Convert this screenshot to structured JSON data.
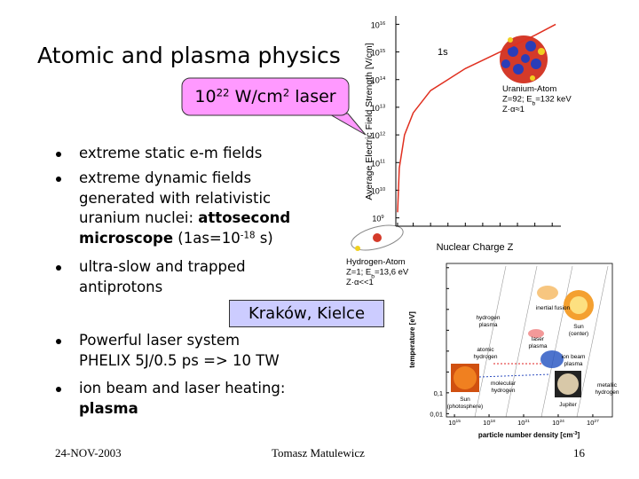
{
  "slide": {
    "title": "Atomic and plasma physics",
    "callout": [
      {
        "text": "10"
      },
      {
        "text": "22",
        "sup": true
      },
      {
        "text": " W/cm"
      },
      {
        "text": "2",
        "sup": true
      },
      {
        "text": " laser"
      }
    ],
    "bullets": [
      [
        [
          {
            "text": "extreme static e-m fields"
          }
        ]
      ],
      [
        [
          {
            "text": "extreme dynamic fields"
          }
        ],
        [
          {
            "text": "generated with relativistic"
          }
        ],
        [
          {
            "text": "uranium nuclei: "
          },
          {
            "text": "attosecond",
            "bold": true
          }
        ],
        [
          {
            "text": "microscope",
            "bold": true
          },
          {
            "text": " (1as=10"
          },
          {
            "text": "-18",
            "sup": true
          },
          {
            "text": " s)"
          }
        ]
      ],
      [
        [
          {
            "text": "ultra-slow and trapped"
          }
        ],
        [
          {
            "text": "antiprotons"
          }
        ]
      ],
      [
        [
          {
            "text": "Powerful laser system"
          }
        ],
        [
          {
            "text": "PHELIX 5J/0.5 ps => 10 TW"
          }
        ]
      ],
      [
        [
          {
            "text": "ion beam and laser heating:"
          }
        ],
        [
          {
            "text": "plasma",
            "bold": true
          }
        ]
      ]
    ],
    "box": "Kraków, Kielce",
    "footer": {
      "date": "24-NOV-2003",
      "author": "Tomasz Matulewicz",
      "page": "16"
    }
  },
  "chart_data": [
    {
      "type": "line",
      "xlabel": "Nuclear Charge Z",
      "ylabel": "Average Electric Field Strength [V/cm]",
      "log_y": true,
      "color": "#e03020",
      "annotation": "1s",
      "x": [
        1,
        2,
        5,
        10,
        20,
        30,
        40,
        50,
        60,
        70,
        80,
        92
      ],
      "values": [
        1600000000.0,
        63000000000.0,
        1000000000000.0,
        6300000000000.0,
        40000000000000.0,
        100000000000000.0,
        250000000000000.0,
        500000000000000.0,
        1000000000000000.0,
        2000000000000000.0,
        4000000000000000.0,
        1e+16
      ],
      "xlim": [
        0,
        95
      ],
      "ylim": [
        500000000.0,
        2e+16
      ],
      "xticks": [
        1,
        10,
        20,
        30,
        40,
        50,
        60,
        70,
        80,
        90
      ],
      "yticks": [
        {
          "value": 1000000000.0,
          "label": "10",
          "sup": "9"
        },
        {
          "value": 10000000000.0,
          "label": "10",
          "sup": "10"
        },
        {
          "value": 100000000000.0,
          "label": "10",
          "sup": "11"
        },
        {
          "value": 1000000000000.0,
          "label": "10",
          "sup": "12"
        },
        {
          "value": 10000000000000.0,
          "label": "10",
          "sup": "13"
        },
        {
          "value": 100000000000000.0,
          "label": "10",
          "sup": "14"
        },
        {
          "value": 1000000000000000.0,
          "label": "10",
          "sup": "15"
        },
        {
          "value": 1e+16,
          "label": "10",
          "sup": "16"
        }
      ],
      "atoms": [
        [
          [
            {
              "text": "Uranium-Atom"
            }
          ],
          [
            {
              "text": "Z=92; E"
            },
            {
              "text": "b",
              "sub": true
            },
            {
              "text": "=132 keV"
            }
          ],
          [
            {
              "text": "Z·α≈1"
            }
          ]
        ],
        [
          [
            {
              "text": "Hydrogen-Atom"
            }
          ],
          [
            {
              "text": "Z=1; E"
            },
            {
              "text": "b",
              "sub": true
            },
            {
              "text": "=13,6 eV"
            }
          ],
          [
            {
              "text": "Z·α<<1"
            }
          ]
        ]
      ]
    },
    {
      "type": "region",
      "xlabel": [
        {
          "text": "particle number density [cm"
        },
        {
          "text": "-3",
          "sup": true
        },
        {
          "text": "]"
        }
      ],
      "ylabel": "temperature [eV]",
      "log_x": true,
      "log_y": true,
      "xlim": [
        200000000000000.0,
        5e+28
      ],
      "ylim": [
        0.007,
        160000
      ],
      "xticks": [
        {
          "value": 1000000000000000.0,
          "label": "10",
          "sup": "15"
        },
        {
          "value": 1e+18,
          "label": "10",
          "sup": "18"
        },
        {
          "value": 1e+21,
          "label": "10",
          "sup": "21"
        },
        {
          "value": 1e+24,
          "label": "10",
          "sup": "24"
        },
        {
          "value": 1e+27,
          "label": "10",
          "sup": "27"
        }
      ],
      "yticks": [
        100000,
        10000,
        1000,
        100,
        10,
        1,
        {
          "value": 0.1,
          "label": "0,1"
        },
        {
          "value": 0.01,
          "label": "0,01"
        }
      ],
      "regions": [
        [
          "inertial fusion"
        ],
        [
          "hydrogen",
          "plasma"
        ],
        [
          "Sun",
          "(center)"
        ],
        [
          "laser",
          "plasma"
        ],
        [
          "atomic",
          "hydrogen"
        ],
        [
          "ion beam",
          "plasma"
        ],
        [
          "Sun",
          "(photosphere)"
        ],
        [
          "molecular",
          "hydrogen"
        ],
        [
          "metallic",
          "hydrogen"
        ],
        [
          "Jupiter"
        ]
      ]
    }
  ]
}
